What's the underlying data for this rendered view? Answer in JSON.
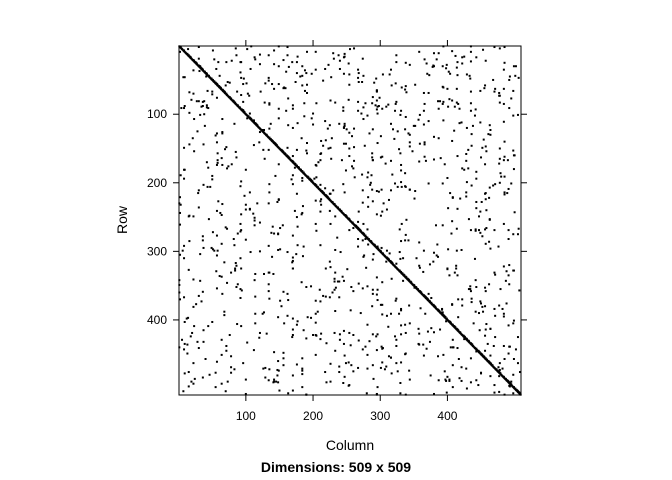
{
  "chart_data": {
    "type": "heatmap",
    "subtype": "sparsity-pattern",
    "xlabel": "Column",
    "ylabel": "Row",
    "subtitle": "Dimensions: 509 x 509",
    "nrow": 509,
    "ncol": 509,
    "xlim": [
      0.5,
      509.5
    ],
    "ylim": [
      509.5,
      0.5
    ],
    "x_ticks": [
      100,
      200,
      300,
      400
    ],
    "y_ticks": [
      100,
      200,
      300,
      400
    ],
    "diagonal": true,
    "offdiagonal_density": 0.018,
    "grid": false,
    "legend": "none",
    "colors": {
      "nonzero": "#000000",
      "background": "#ffffff",
      "frame": "#000000"
    }
  }
}
